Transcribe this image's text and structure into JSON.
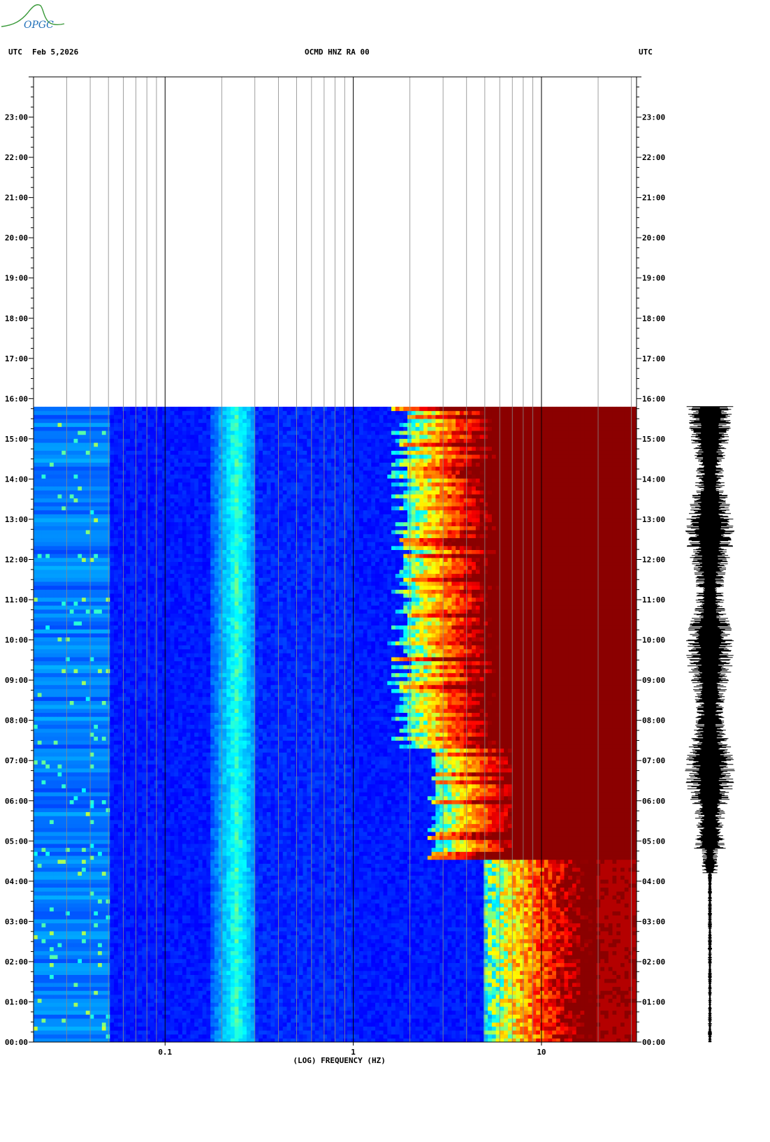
{
  "logo": {
    "text": "OPGC",
    "color": "#1f6fb8",
    "swoosh_color": "#3a9a3a"
  },
  "header": {
    "left_timezone": "UTC",
    "date": "Feb 5,2026",
    "station": "OCMD HNZ RA 00",
    "right_timezone": "UTC"
  },
  "chart_data": {
    "type": "heatmap",
    "title": "OCMD HNZ RA 00",
    "xlabel": "(LOG) FREQUENCY (HZ)",
    "ylabel": "",
    "x_scale": "log",
    "xlim": [
      0.02,
      32
    ],
    "x_major_ticks": [
      0.1,
      1,
      10
    ],
    "x_tick_labels": [
      "0.1",
      "1",
      "10"
    ],
    "ylim_hours": [
      0,
      24
    ],
    "y_tick_labels": [
      "00:00",
      "01:00",
      "02:00",
      "03:00",
      "04:00",
      "05:00",
      "06:00",
      "07:00",
      "08:00",
      "09:00",
      "10:00",
      "11:00",
      "12:00",
      "13:00",
      "14:00",
      "15:00",
      "16:00",
      "17:00",
      "18:00",
      "19:00",
      "20:00",
      "21:00",
      "22:00",
      "23:00"
    ],
    "data_end_hour": 15.8,
    "grid": true,
    "colormap": [
      "#00008b",
      "#0000ff",
      "#0080ff",
      "#00ffff",
      "#ffff00",
      "#ff8000",
      "#ff0000",
      "#8b0000"
    ],
    "seismogram": {
      "color": "#000000",
      "start_hour": 0,
      "end_hour": 15.8
    }
  }
}
